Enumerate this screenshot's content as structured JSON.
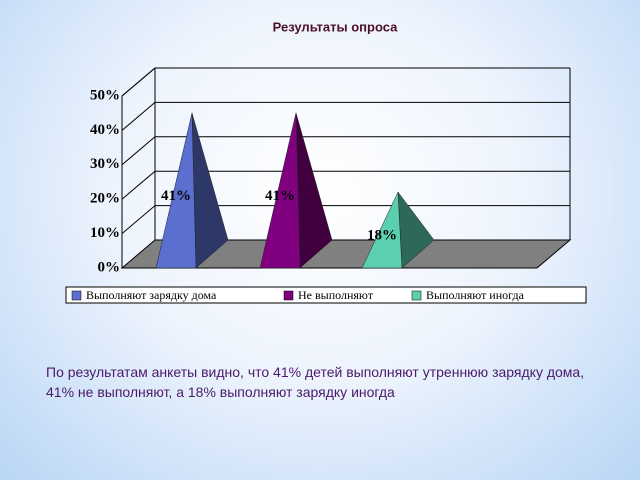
{
  "chart_data": {
    "type": "bar",
    "title": "Результаты опроса",
    "categories": [
      null
    ],
    "series": [
      {
        "name": "Выполняют зарядку дома",
        "color": "#5a6fd0",
        "values": [
          41
        ],
        "value_labels": [
          "41%"
        ]
      },
      {
        "name": "Не выполняют",
        "color": "#800080",
        "values": [
          41
        ],
        "value_labels": [
          "41%"
        ]
      },
      {
        "name": "Выполняют иногда",
        "color": "#5ccfb0",
        "values": [
          18
        ],
        "value_labels": [
          "18%"
        ]
      }
    ],
    "ylim": [
      0,
      50
    ],
    "yticks": [
      {
        "value": 0,
        "label": "0%"
      },
      {
        "value": 10,
        "label": "10%"
      },
      {
        "value": 20,
        "label": "20%"
      },
      {
        "value": 30,
        "label": "30%"
      },
      {
        "value": 40,
        "label": "40%"
      },
      {
        "value": 50,
        "label": "50%"
      }
    ],
    "grid": true,
    "legend": "bottom"
  },
  "caption": "По результатам анкеты видно, что 41% детей выполняют утреннюю зарядку дома,  41% не выполняют, а 18% выполняют зарядку иногда"
}
